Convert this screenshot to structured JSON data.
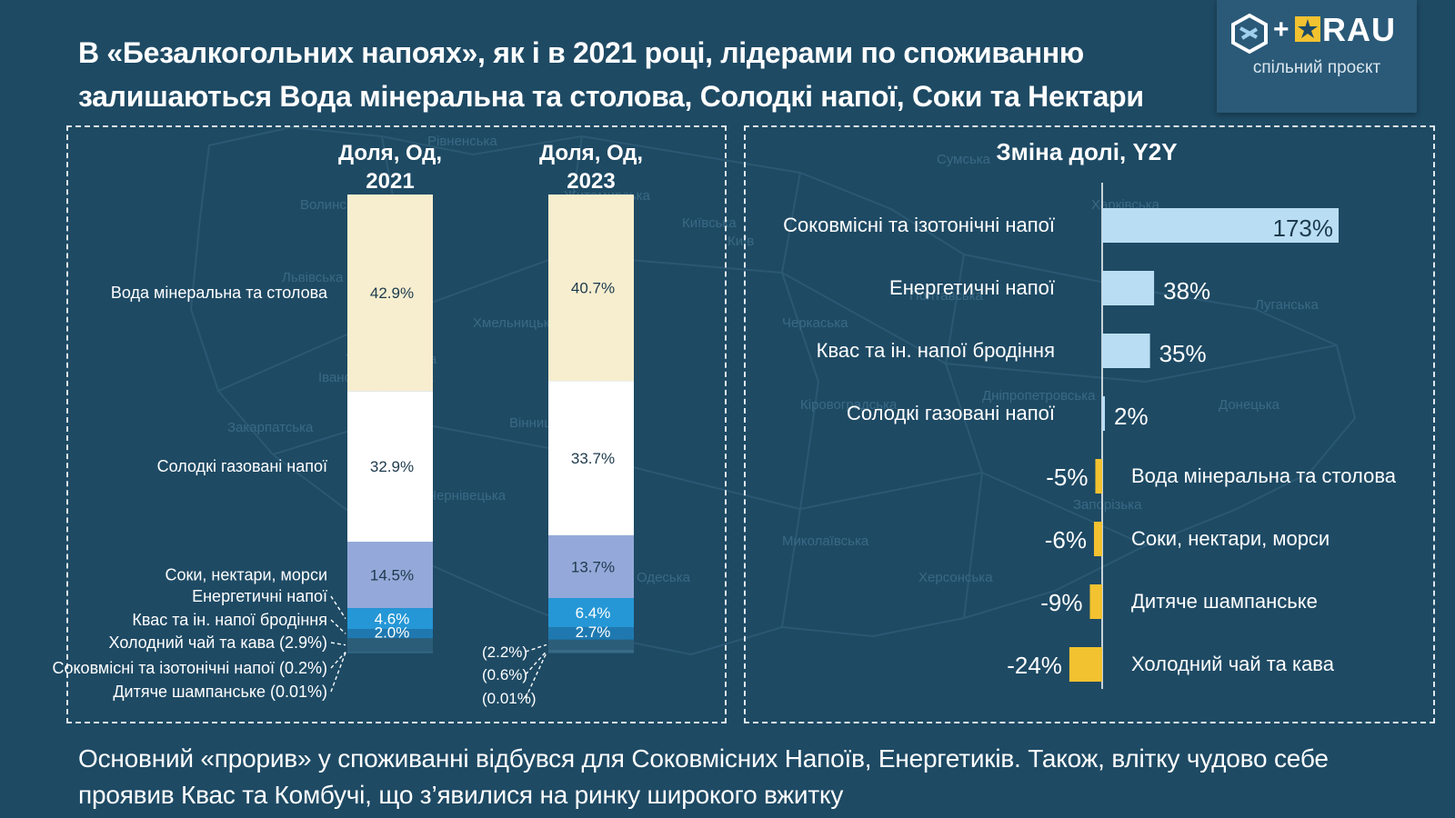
{
  "title": {
    "line1": "В «Безалкогольних напоях», як і в 2021 році, лідерами по споживанню",
    "line2": "залишаються Вода мінеральна та столова, Солодкі напої, Соки та Нектари"
  },
  "logo": {
    "plus": "+",
    "brand": "RAU",
    "subtitle": "спільний проєкт"
  },
  "map_labels": [
    "Рівненська",
    "Волинська",
    "Львівська",
    "Хмельницька",
    "Тернопільська",
    "Івано-Франківська",
    "Закарпатська",
    "Чернівецька",
    "Вінницька",
    "Київська",
    "Житомирська",
    "Черкаська",
    "Кіровоградська",
    "Полтавська",
    "Сумська",
    "Харківська",
    "Луганська",
    "Донецька",
    "Дніпропетровська",
    "Запорізька",
    "Херсонська",
    "Миколаївська",
    "Одеська",
    "Київ"
  ],
  "chart_data": [
    {
      "type": "stacked_bar",
      "title": "",
      "categories": [
        "Доля, Од, 2021",
        "Доля, Од, 2023"
      ],
      "category_lines": [
        [
          "Доля, Од,",
          "2021"
        ],
        [
          "Доля, Од,",
          "2023"
        ]
      ],
      "series": [
        {
          "name": "Вода мінеральна та столова",
          "color": "#f7eecf",
          "values": [
            42.9,
            40.7
          ],
          "value_labels": [
            "42.9%",
            "40.7%"
          ]
        },
        {
          "name": "Солодкі газовані напої",
          "color": "#ffffff",
          "values": [
            32.9,
            33.7
          ],
          "value_labels": [
            "32.9%",
            "33.7%"
          ]
        },
        {
          "name": "Соки, нектари, морси",
          "color": "#94a9d9",
          "values": [
            14.5,
            13.7
          ],
          "value_labels": [
            "14.5%",
            "13.7%"
          ]
        },
        {
          "name": "Енергетичні напої",
          "color": "#2597d6",
          "values": [
            4.6,
            6.4
          ],
          "value_labels": [
            "4.6%",
            "6.4%"
          ]
        },
        {
          "name": "Квас та ін. напої бродіння",
          "color": "#1f79b0",
          "values": [
            2.0,
            2.7
          ],
          "value_labels": [
            "2.0%",
            "2.7%"
          ]
        },
        {
          "name": "Холодний чай та кава (2.9%)",
          "color": "#2c5d78",
          "values": [
            2.9,
            2.2
          ],
          "value_labels": [
            "",
            "(2.2%)"
          ]
        },
        {
          "name": "Соковмісні та ізотонічні напої (0.2%)",
          "color": "#3a6a85",
          "values": [
            0.2,
            0.6
          ],
          "value_labels": [
            "",
            "(0.6%)"
          ]
        },
        {
          "name": "Дитяче шампанське (0.01%)",
          "color": "#2f6b8a",
          "values": [
            0.01,
            0.01
          ],
          "value_labels": [
            "",
            "(0.01%)"
          ]
        }
      ],
      "ylim": [
        0,
        100
      ]
    },
    {
      "type": "bar",
      "orientation": "horizontal",
      "title": "Зміна долі, Y2Y",
      "categories": [
        "Соковмісні та ізотонічні напої",
        "Енергетичні напої",
        "Квас та ін. напої бродіння",
        "Солодкі газовані напої",
        "Вода мінеральна та столова",
        "Соки, нектари, морси",
        "Дитяче шампанське",
        "Холодний чай та кава"
      ],
      "values": [
        173,
        38,
        35,
        2,
        -5,
        -6,
        -9,
        -24
      ],
      "value_labels": [
        "173%",
        "38%",
        "35%",
        "2%",
        "-5%",
        "-6%",
        "-9%",
        "-24%"
      ],
      "colors": {
        "positive": "#b9def4",
        "negative": "#f2c230"
      },
      "xlim": [
        -24,
        173
      ]
    }
  ],
  "footer": {
    "line1": "Основний «прорив» у споживанні відбувся для Соковмісних Напоїв, Енергетиків. Також, влітку чудово себе",
    "line2": "проявив Квас та Комбучі, що з’явилися на ринку широкого вжитку"
  }
}
